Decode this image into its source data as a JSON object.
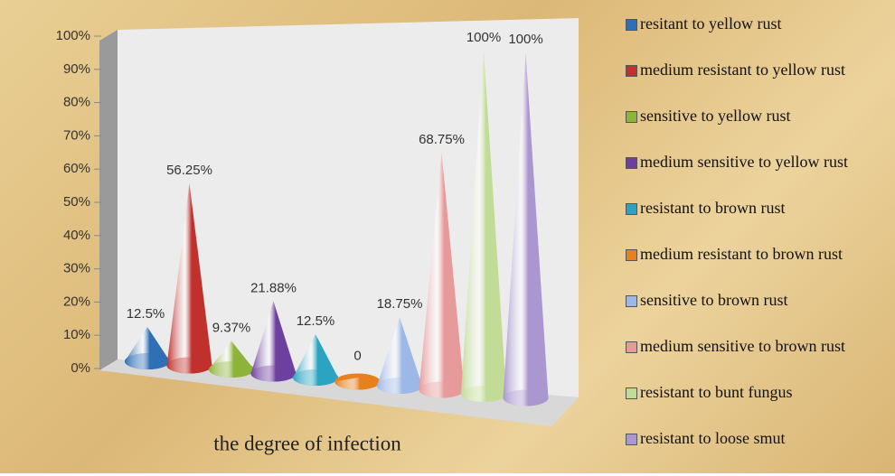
{
  "chart_data": {
    "type": "cone",
    "x_label": "the degree of infection",
    "categories": [
      null
    ],
    "ylim": [
      0,
      100
    ],
    "yticks": [
      {
        "value": 0,
        "label": "0%"
      },
      {
        "value": 10,
        "label": "10%"
      },
      {
        "value": 20,
        "label": "20%"
      },
      {
        "value": 30,
        "label": "30%"
      },
      {
        "value": 40,
        "label": "40%"
      },
      {
        "value": 50,
        "label": "50%"
      },
      {
        "value": 60,
        "label": "60%"
      },
      {
        "value": 70,
        "label": "70%"
      },
      {
        "value": 80,
        "label": "80%"
      },
      {
        "value": 90,
        "label": "90%"
      },
      {
        "value": 100,
        "label": "100%"
      }
    ],
    "series": [
      {
        "name": "resitant to yellow rust",
        "color": "#2e6fb5",
        "values": [
          12.5
        ],
        "value_labels": [
          "12.5%"
        ]
      },
      {
        "name": "medium resistant to yellow rust",
        "color": "#c0302c",
        "values": [
          56.25
        ],
        "value_labels": [
          "56.25%"
        ]
      },
      {
        "name": "sensitive to yellow rust",
        "color": "#8db33a",
        "values": [
          9.37
        ],
        "value_labels": [
          "9.37%"
        ]
      },
      {
        "name": "medium sensitive to yellow rust",
        "color": "#6d3f9e",
        "values": [
          21.88
        ],
        "value_labels": [
          "21.88%"
        ]
      },
      {
        "name": "resistant to brown rust",
        "color": "#2aa4c0",
        "values": [
          12.5
        ],
        "value_labels": [
          "12.5%"
        ]
      },
      {
        "name": "medium resistant to brown rust",
        "color": "#e7811f",
        "values": [
          0
        ],
        "value_labels": [
          "0"
        ]
      },
      {
        "name": "sensitive to brown rust",
        "color": "#9db8e6",
        "values": [
          18.75
        ],
        "value_labels": [
          "18.75%"
        ]
      },
      {
        "name": "medium sensitive to brown rust",
        "color": "#e79a9a",
        "values": [
          68.75
        ],
        "value_labels": [
          "68.75%"
        ]
      },
      {
        "name": "resistant to bunt fungus",
        "color": "#c2dc97",
        "values": [
          100
        ],
        "value_labels": [
          "100%"
        ]
      },
      {
        "name": "resistant to loose smut",
        "color": "#aa97cf",
        "values": [
          100
        ],
        "value_labels": [
          "100%"
        ]
      }
    ]
  }
}
